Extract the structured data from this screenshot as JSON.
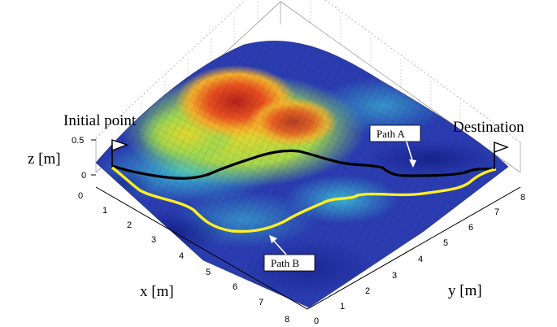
{
  "labels": {
    "initial_point": "Initial point",
    "destination": "Destination",
    "path_a": "Path A",
    "path_b": "Path B"
  },
  "axes": {
    "x_label": "x [m]",
    "y_label": "y [m]",
    "z_label": "z [m]",
    "x_ticks": [
      "0",
      "1",
      "2",
      "3",
      "4",
      "5",
      "6",
      "7",
      "8"
    ],
    "y_ticks": [
      "0",
      "1",
      "2",
      "3",
      "4",
      "5",
      "6",
      "7",
      "8"
    ],
    "z_ticks": [
      "0",
      "0.5"
    ]
  },
  "colors": {
    "path_a": "#000000",
    "path_b": "#ffee22",
    "terrain_low": "#1a2a9c",
    "terrain_mid": "#36c8d8",
    "terrain_high": "#e03a1a"
  }
}
